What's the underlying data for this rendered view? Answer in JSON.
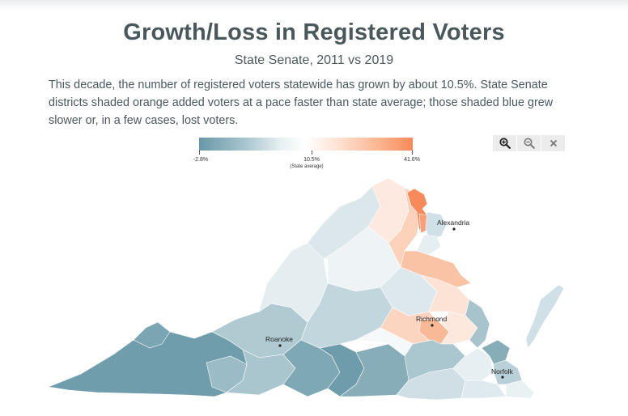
{
  "title": "Growth/Loss in Registered Voters",
  "subtitle": "State Senate, 2011 vs 2019",
  "description": "This decade, the number of registered voters statewide has grown by about 10.5%. State Senate districts shaded orange added voters at a pace faster than state average; those shaded blue grew slower or, in a few cases, lost voters.",
  "legend": {
    "min_label": "-2.8%",
    "mid_label": "10.5%",
    "mid_sublabel": "(State average)",
    "max_label": "41.6%",
    "min_value": -2.8,
    "mid_value": 10.5,
    "max_value": 41.6,
    "low_color": "#6898a6",
    "mid_color": "#ffffff",
    "high_color": "#f7895a"
  },
  "zoom_controls": {
    "zoom_in_icon": "zoom-in-icon",
    "zoom_out_icon": "zoom-out-icon",
    "reset_icon": "close-icon"
  },
  "cities": {
    "alexandria": "Alexandria",
    "richmond": "Richmond",
    "roanoke": "Roanoke",
    "norfolk": "Norfolk"
  }
}
